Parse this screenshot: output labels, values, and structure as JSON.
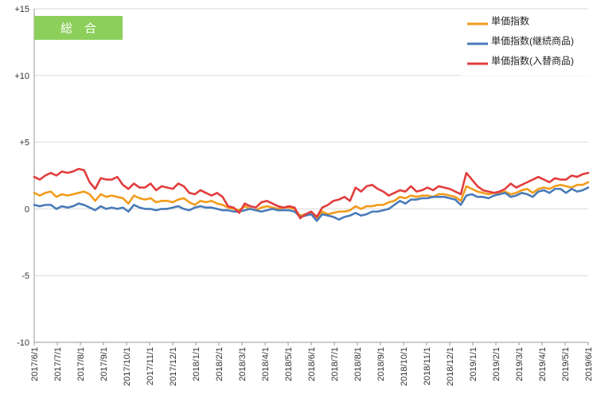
{
  "chart_data": {
    "type": "line",
    "title_badge": "総　合",
    "ylim": [
      -10,
      15
    ],
    "yticks": [
      {
        "value": 15,
        "label": "+15"
      },
      {
        "value": 10,
        "label": "+10"
      },
      {
        "value": 5,
        "label": "+5"
      },
      {
        "value": 0,
        "label": "0"
      },
      {
        "value": -5,
        "label": "-5"
      },
      {
        "value": -10,
        "label": "-10"
      }
    ],
    "x_tick_labels": [
      "2017/6/1",
      "2017/7/1",
      "2017/8/1",
      "2017/9/1",
      "2017/10/1",
      "2017/11/1",
      "2017/12/1",
      "2018/1/1",
      "2018/2/1",
      "2018/3/1",
      "2018/4/1",
      "2018/5/1",
      "2018/6/1",
      "2018/7/1",
      "2018/8/1",
      "2018/9/1",
      "2018/10/1",
      "2018/11/1",
      "2018/12/1",
      "2019/1/1",
      "2019/2/1",
      "2019/3/1",
      "2019/4/1",
      "2019/5/1",
      "2019/6/1"
    ],
    "grid": true,
    "legend_position": "top-right",
    "series": [
      {
        "name": "単価指数",
        "color": "#f39b1b",
        "values": [
          1.2,
          1.0,
          1.2,
          1.3,
          0.9,
          1.1,
          1.0,
          1.1,
          1.2,
          1.3,
          1.1,
          0.6,
          1.1,
          0.9,
          1.0,
          0.9,
          0.8,
          0.4,
          1.0,
          0.8,
          0.7,
          0.8,
          0.5,
          0.6,
          0.6,
          0.5,
          0.7,
          0.8,
          0.5,
          0.3,
          0.6,
          0.5,
          0.6,
          0.4,
          0.3,
          0.1,
          0.0,
          -0.1,
          0.2,
          0.0,
          -0.1,
          0.1,
          0.2,
          0.1,
          0.0,
          0.1,
          0.1,
          0.0,
          -0.5,
          -0.4,
          -0.3,
          -0.7,
          -0.2,
          -0.4,
          -0.3,
          -0.2,
          -0.2,
          -0.1,
          0.2,
          0.0,
          0.2,
          0.2,
          0.3,
          0.3,
          0.5,
          0.6,
          0.9,
          0.8,
          1.0,
          0.9,
          1.0,
          1.0,
          0.9,
          1.1,
          1.1,
          1.0,
          0.9,
          0.6,
          1.7,
          1.5,
          1.3,
          1.2,
          1.1,
          1.2,
          1.2,
          1.3,
          1.1,
          1.2,
          1.4,
          1.5,
          1.2,
          1.5,
          1.6,
          1.5,
          1.7,
          1.8,
          1.7,
          1.6,
          1.8,
          1.8,
          2.0
        ]
      },
      {
        "name": "単価指数(継続商品)",
        "color": "#4a7bb8",
        "values": [
          0.3,
          0.2,
          0.3,
          0.3,
          0.0,
          0.2,
          0.1,
          0.2,
          0.4,
          0.3,
          0.1,
          -0.1,
          0.2,
          0.0,
          0.1,
          0.0,
          0.1,
          -0.2,
          0.3,
          0.1,
          0.0,
          0.0,
          -0.1,
          0.0,
          0.0,
          0.1,
          0.2,
          0.0,
          -0.1,
          0.1,
          0.2,
          0.1,
          0.1,
          0.0,
          -0.1,
          -0.1,
          -0.2,
          -0.2,
          -0.1,
          0.0,
          -0.1,
          -0.2,
          -0.1,
          0.0,
          -0.1,
          -0.1,
          -0.1,
          -0.2,
          -0.6,
          -0.5,
          -0.4,
          -0.9,
          -0.4,
          -0.5,
          -0.6,
          -0.8,
          -0.6,
          -0.5,
          -0.3,
          -0.5,
          -0.4,
          -0.2,
          -0.2,
          -0.1,
          0.0,
          0.3,
          0.6,
          0.4,
          0.7,
          0.7,
          0.8,
          0.8,
          0.9,
          0.9,
          0.9,
          0.8,
          0.7,
          0.3,
          1.0,
          1.1,
          0.9,
          0.9,
          0.8,
          1.0,
          1.1,
          1.2,
          0.9,
          1.0,
          1.2,
          1.1,
          0.9,
          1.3,
          1.4,
          1.2,
          1.5,
          1.5,
          1.2,
          1.5,
          1.3,
          1.4,
          1.6
        ]
      },
      {
        "name": "単価指数(入替商品)",
        "color": "#e23d3d",
        "values": [
          2.4,
          2.2,
          2.5,
          2.7,
          2.5,
          2.8,
          2.7,
          2.8,
          3.0,
          2.9,
          2.0,
          1.5,
          2.3,
          2.2,
          2.2,
          2.4,
          1.8,
          1.5,
          1.9,
          1.6,
          1.6,
          1.9,
          1.4,
          1.7,
          1.6,
          1.5,
          1.9,
          1.7,
          1.2,
          1.1,
          1.4,
          1.2,
          1.0,
          1.2,
          0.9,
          0.2,
          0.1,
          -0.3,
          0.4,
          0.2,
          0.1,
          0.5,
          0.6,
          0.4,
          0.2,
          0.1,
          0.2,
          0.1,
          -0.7,
          -0.4,
          -0.2,
          -0.6,
          0.1,
          0.3,
          0.6,
          0.7,
          0.9,
          0.6,
          1.6,
          1.3,
          1.7,
          1.8,
          1.5,
          1.3,
          1.0,
          1.2,
          1.4,
          1.3,
          1.7,
          1.3,
          1.4,
          1.6,
          1.4,
          1.7,
          1.6,
          1.5,
          1.3,
          1.1,
          2.7,
          2.2,
          1.7,
          1.4,
          1.3,
          1.2,
          1.3,
          1.5,
          1.9,
          1.6,
          1.8,
          2.0,
          2.2,
          2.4,
          2.2,
          2.0,
          2.3,
          2.2,
          2.2,
          2.5,
          2.4,
          2.6,
          2.7
        ]
      }
    ]
  }
}
